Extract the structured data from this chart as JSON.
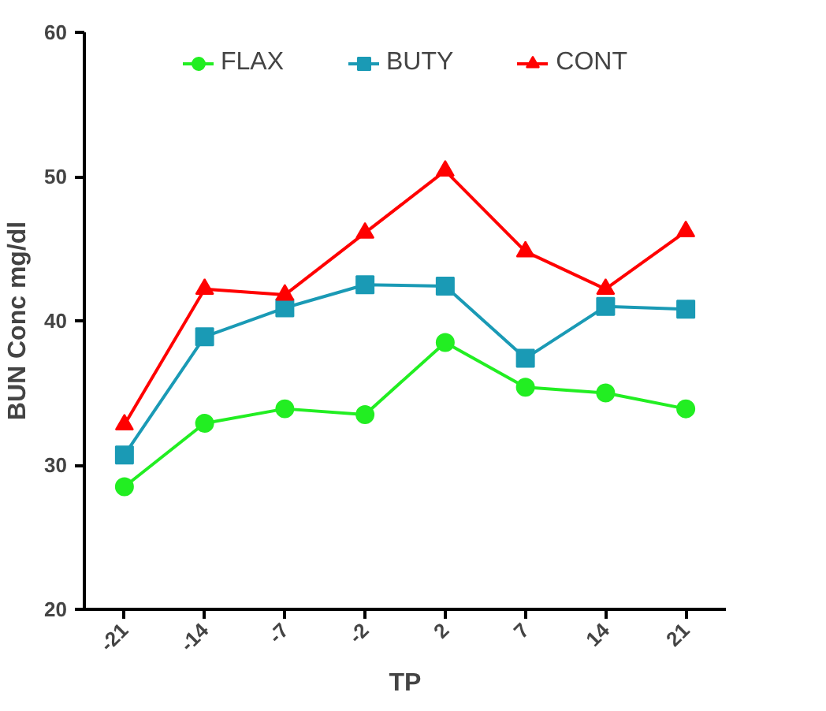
{
  "chart_data": {
    "type": "line",
    "xlabel": "TP",
    "ylabel": "BUN Conc mg/dl",
    "categories": [
      "-21",
      "-14",
      "-7",
      "-2",
      "2",
      "7",
      "14",
      "21"
    ],
    "ylim": [
      20,
      60
    ],
    "yticks": [
      20,
      30,
      40,
      50,
      60
    ],
    "grid": false,
    "legend": "top",
    "series": [
      {
        "name": "FLAX",
        "color": "#22ee22",
        "marker": "circle",
        "values": [
          28.5,
          32.9,
          33.9,
          33.5,
          38.5,
          35.4,
          35.0,
          33.9
        ]
      },
      {
        "name": "BUTY",
        "color": "#1a9ab5",
        "marker": "square",
        "values": [
          30.7,
          38.9,
          40.9,
          42.5,
          42.4,
          37.4,
          41.0,
          40.8
        ]
      },
      {
        "name": "CONT",
        "color": "#ff0000",
        "marker": "triangle",
        "values": [
          32.8,
          42.2,
          41.8,
          46.1,
          50.4,
          44.8,
          42.2,
          46.2
        ]
      }
    ]
  }
}
